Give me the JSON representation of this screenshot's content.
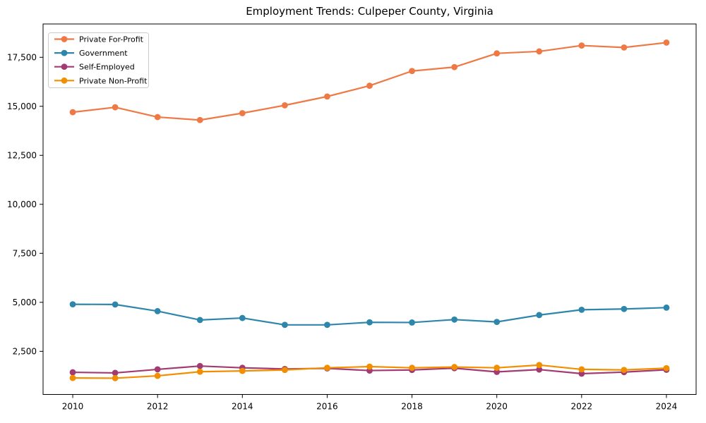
{
  "chart_data": {
    "type": "line",
    "title": "Employment Trends: Culpeper County, Virginia",
    "xlabel": "",
    "ylabel": "",
    "x": [
      2010,
      2011,
      2012,
      2013,
      2014,
      2015,
      2016,
      2017,
      2018,
      2019,
      2020,
      2021,
      2022,
      2023,
      2024
    ],
    "series": [
      {
        "name": "Private For-Profit",
        "color": "#EE7945",
        "values": [
          14700,
          14950,
          14450,
          14300,
          14650,
          15050,
          15500,
          16050,
          16800,
          17000,
          17700,
          17800,
          18100,
          18000,
          18250
        ]
      },
      {
        "name": "Government",
        "color": "#2E86AB",
        "values": [
          4900,
          4890,
          4550,
          4100,
          4200,
          3850,
          3850,
          3980,
          3970,
          4120,
          4000,
          4350,
          4620,
          4660,
          4730
        ]
      },
      {
        "name": "Self-Employed",
        "color": "#A23B72",
        "values": [
          1430,
          1400,
          1580,
          1750,
          1660,
          1600,
          1630,
          1520,
          1550,
          1640,
          1450,
          1570,
          1360,
          1440,
          1560
        ]
      },
      {
        "name": "Private Non-Profit",
        "color": "#F18F01",
        "values": [
          1140,
          1130,
          1250,
          1460,
          1500,
          1550,
          1660,
          1720,
          1660,
          1700,
          1660,
          1800,
          1580,
          1550,
          1640
        ]
      }
    ],
    "xticks": [
      2010,
      2012,
      2014,
      2016,
      2018,
      2020,
      2022,
      2024
    ],
    "xtick_labels": [
      "2010",
      "2012",
      "2014",
      "2016",
      "2018",
      "2020",
      "2022",
      "2024"
    ],
    "yticks": [
      2500,
      5000,
      7500,
      10000,
      12500,
      15000,
      17500
    ],
    "ytick_labels": [
      "2,500",
      "5,000",
      "7,500",
      "10,000",
      "12,500",
      "15,000",
      "17,500"
    ],
    "xlim": [
      2009.3,
      2024.7
    ],
    "ylim": [
      300,
      19200
    ],
    "grid": false,
    "legend_position": "upper left",
    "axis_color": "#000000",
    "background_color": "#ffffff"
  }
}
